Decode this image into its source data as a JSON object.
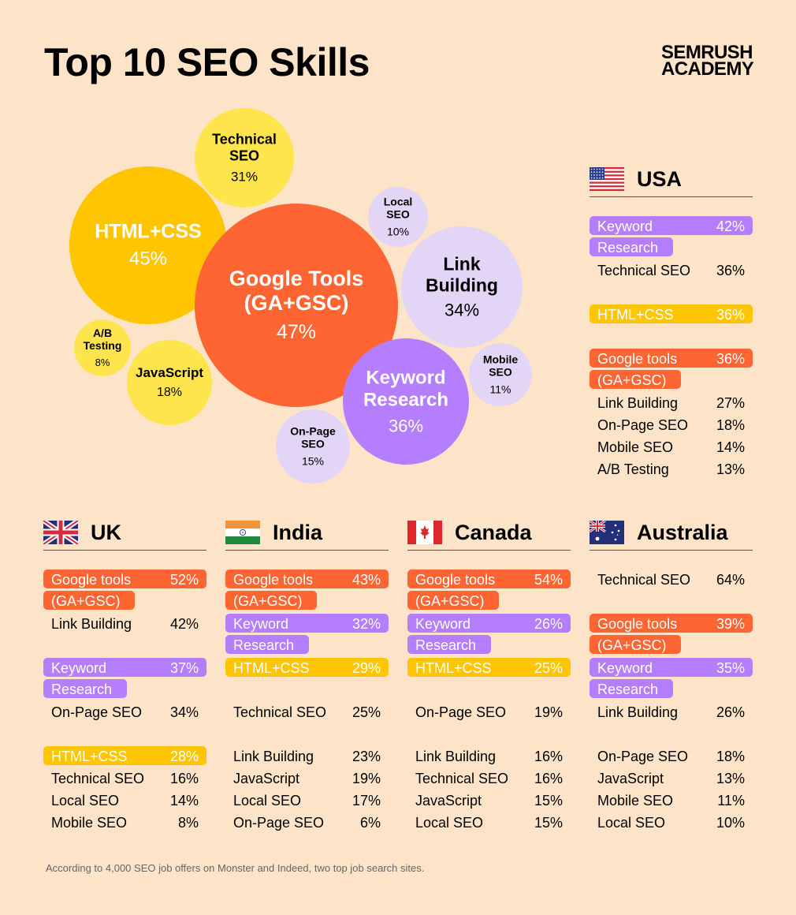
{
  "title": "Top 10 SEO Skills",
  "brand": {
    "line1": "SEMRUSH",
    "line2": "ACADEMY"
  },
  "colors": {
    "background": "#fde4c9",
    "orange": "#ff6533",
    "yellow": "#ffe54d",
    "gold": "#ffc600",
    "lavender": "#e3d5f5",
    "purple": "#b57dff"
  },
  "chart_data": {
    "type": "bubble",
    "title": "Top 10 SEO Skills",
    "items": [
      {
        "label": "Google Tools (GA+GSC)",
        "lines": [
          "Google Tools",
          "(GA+GSC)"
        ],
        "value": 47,
        "pct": "47%",
        "color": "orange"
      },
      {
        "label": "HTML+CSS",
        "lines": [
          "HTML+CSS"
        ],
        "value": 45,
        "pct": "45%",
        "color": "gold"
      },
      {
        "label": "Keyword Research",
        "lines": [
          "Keyword",
          "Research"
        ],
        "value": 36,
        "pct": "36%",
        "color": "purple"
      },
      {
        "label": "Link Building",
        "lines": [
          "Link",
          "Building"
        ],
        "value": 34,
        "pct": "34%",
        "color": "lavender"
      },
      {
        "label": "Technical SEO",
        "lines": [
          "Technical",
          "SEO"
        ],
        "value": 31,
        "pct": "31%",
        "color": "yellow"
      },
      {
        "label": "JavaScript",
        "lines": [
          "JavaScript"
        ],
        "value": 18,
        "pct": "18%",
        "color": "yellow"
      },
      {
        "label": "On-Page SEO",
        "lines": [
          "On-Page",
          "SEO"
        ],
        "value": 15,
        "pct": "15%",
        "color": "lavender"
      },
      {
        "label": "Mobile SEO",
        "lines": [
          "Mobile",
          "SEO"
        ],
        "value": 11,
        "pct": "11%",
        "color": "lavender"
      },
      {
        "label": "Local SEO",
        "lines": [
          "Local",
          "SEO"
        ],
        "value": 10,
        "pct": "10%",
        "color": "lavender"
      },
      {
        "label": "A/B Testing",
        "lines": [
          "A/B",
          "Testing"
        ],
        "value": 8,
        "pct": "8%",
        "color": "yellow"
      }
    ],
    "countries": [
      {
        "name": "USA",
        "flag": "usa",
        "rows": [
          {
            "skill": "Keyword Research",
            "lines": [
              "Keyword",
              "Research"
            ],
            "value": 42,
            "pct": "42%",
            "highlight": "purple"
          },
          {
            "skill": "Technical SEO",
            "lines": [
              "Technical SEO"
            ],
            "value": 36,
            "pct": "36%"
          },
          {
            "skill": "HTML+CSS",
            "lines": [
              "HTML+CSS"
            ],
            "value": 36,
            "pct": "36%",
            "highlight": "gold"
          },
          {
            "skill": "Google tools (GA+GSC)",
            "lines": [
              "Google tools",
              "(GA+GSC)"
            ],
            "value": 36,
            "pct": "36%",
            "highlight": "orange"
          },
          {
            "skill": "Link Building",
            "lines": [
              "Link Building"
            ],
            "value": 27,
            "pct": "27%"
          },
          {
            "skill": "On-Page SEO",
            "lines": [
              "On-Page SEO"
            ],
            "value": 18,
            "pct": "18%"
          },
          {
            "skill": "Mobile SEO",
            "lines": [
              "Mobile SEO"
            ],
            "value": 14,
            "pct": "14%"
          },
          {
            "skill": "A/B Testing",
            "lines": [
              "A/B Testing"
            ],
            "value": 13,
            "pct": "13%"
          }
        ]
      },
      {
        "name": "UK",
        "flag": "uk",
        "rows": [
          {
            "skill": "Google tools (GA+GSC)",
            "lines": [
              "Google tools",
              "(GA+GSC)"
            ],
            "value": 52,
            "pct": "52%",
            "highlight": "orange"
          },
          {
            "skill": "Link Building",
            "lines": [
              "Link Building"
            ],
            "value": 42,
            "pct": "42%"
          },
          {
            "skill": "Keyword Research",
            "lines": [
              "Keyword",
              "Research"
            ],
            "value": 37,
            "pct": "37%",
            "highlight": "purple"
          },
          {
            "skill": "On-Page SEO",
            "lines": [
              "On-Page SEO"
            ],
            "value": 34,
            "pct": "34%"
          },
          {
            "skill": "HTML+CSS",
            "lines": [
              "HTML+CSS"
            ],
            "value": 28,
            "pct": "28%",
            "highlight": "gold"
          },
          {
            "skill": "Technical SEO",
            "lines": [
              "Technical SEO"
            ],
            "value": 16,
            "pct": "16%"
          },
          {
            "skill": "Local SEO",
            "lines": [
              "Local SEO"
            ],
            "value": 14,
            "pct": "14%"
          },
          {
            "skill": "Mobile SEO",
            "lines": [
              "Mobile SEO"
            ],
            "value": 8,
            "pct": "8%"
          }
        ]
      },
      {
        "name": "India",
        "flag": "india",
        "rows": [
          {
            "skill": "Google tools (GA+GSC)",
            "lines": [
              "Google tools",
              "(GA+GSC)"
            ],
            "value": 43,
            "pct": "43%",
            "highlight": "orange"
          },
          {
            "skill": "Keyword Research",
            "lines": [
              "Keyword",
              "Research"
            ],
            "value": 32,
            "pct": "32%",
            "highlight": "purple"
          },
          {
            "skill": "HTML+CSS",
            "lines": [
              "HTML+CSS"
            ],
            "value": 29,
            "pct": "29%",
            "highlight": "gold"
          },
          {
            "skill": "Technical SEO",
            "lines": [
              "Technical SEO"
            ],
            "value": 25,
            "pct": "25%"
          },
          {
            "skill": "Link Building",
            "lines": [
              "Link Building"
            ],
            "value": 23,
            "pct": "23%"
          },
          {
            "skill": "JavaScript",
            "lines": [
              "JavaScript"
            ],
            "value": 19,
            "pct": "19%"
          },
          {
            "skill": "Local SEO",
            "lines": [
              "Local SEO"
            ],
            "value": 17,
            "pct": "17%"
          },
          {
            "skill": "On-Page SEO",
            "lines": [
              "On-Page SEO"
            ],
            "value": 6,
            "pct": "6%"
          }
        ]
      },
      {
        "name": "Canada",
        "flag": "canada",
        "rows": [
          {
            "skill": "Google tools (GA+GSC)",
            "lines": [
              "Google tools",
              "(GA+GSC)"
            ],
            "value": 54,
            "pct": "54%",
            "highlight": "orange"
          },
          {
            "skill": "Keyword Research",
            "lines": [
              "Keyword",
              "Research"
            ],
            "value": 26,
            "pct": "26%",
            "highlight": "purple"
          },
          {
            "skill": "HTML+CSS",
            "lines": [
              "HTML+CSS"
            ],
            "value": 25,
            "pct": "25%",
            "highlight": "gold"
          },
          {
            "skill": "On-Page SEO",
            "lines": [
              "On-Page SEO"
            ],
            "value": 19,
            "pct": "19%"
          },
          {
            "skill": "Link Building",
            "lines": [
              "Link Building"
            ],
            "value": 16,
            "pct": "16%"
          },
          {
            "skill": "Technical SEO",
            "lines": [
              "Technical SEO"
            ],
            "value": 16,
            "pct": "16%"
          },
          {
            "skill": "JavaScript",
            "lines": [
              "JavaScript"
            ],
            "value": 15,
            "pct": "15%"
          },
          {
            "skill": "Local SEO",
            "lines": [
              "Local SEO"
            ],
            "value": 15,
            "pct": "15%"
          }
        ]
      },
      {
        "name": "Australia",
        "flag": "australia",
        "rows": [
          {
            "skill": "Technical SEO",
            "lines": [
              "Technical SEO"
            ],
            "value": 64,
            "pct": "64%"
          },
          {
            "skill": "Google tools (GA+GSC)",
            "lines": [
              "Google tools",
              "(GA+GSC)"
            ],
            "value": 39,
            "pct": "39%",
            "highlight": "orange"
          },
          {
            "skill": "Keyword Research",
            "lines": [
              "Keyword",
              "Research"
            ],
            "value": 35,
            "pct": "35%",
            "highlight": "purple"
          },
          {
            "skill": "Link Building",
            "lines": [
              "Link Building"
            ],
            "value": 26,
            "pct": "26%"
          },
          {
            "skill": "On-Page SEO",
            "lines": [
              "On-Page SEO"
            ],
            "value": 18,
            "pct": "18%"
          },
          {
            "skill": "JavaScript",
            "lines": [
              "JavaScript"
            ],
            "value": 13,
            "pct": "13%"
          },
          {
            "skill": "Mobile SEO",
            "lines": [
              "Mobile SEO"
            ],
            "value": 11,
            "pct": "11%"
          },
          {
            "skill": "Local SEO",
            "lines": [
              "Local SEO"
            ],
            "value": 10,
            "pct": "10%"
          }
        ]
      }
    ]
  },
  "footnote": "According to 4,000 SEO job offers on Monster and Indeed, two top job search sites."
}
